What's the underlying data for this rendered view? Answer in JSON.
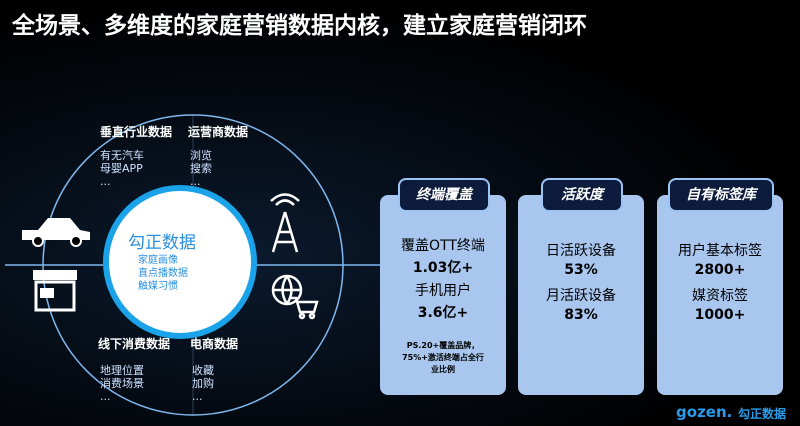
{
  "header": {
    "title": "全场景、多维度的家庭营销数据内核，建立家庭营销闭环"
  },
  "circle": {
    "center": {
      "title": "勾正数据",
      "items": [
        "家庭画像",
        "直点播数据",
        "触媒习惯"
      ]
    },
    "quadrants": [
      {
        "title": "垂直行业数据",
        "items": [
          "有无汽车",
          "母婴APP",
          "..."
        ]
      },
      {
        "title": "运营商数据",
        "items": [
          "浏览",
          "搜索",
          "..."
        ]
      },
      {
        "title": "线下消费数据",
        "items": [
          "地理位置",
          "消费场景",
          "..."
        ]
      },
      {
        "title": "电商数据",
        "items": [
          "收藏",
          "加购",
          "..."
        ]
      }
    ]
  },
  "cards": [
    {
      "tab": "终端覆盖",
      "lines": [
        "覆盖OTT终端",
        "1.03亿+",
        "手机用户",
        "3.6亿+"
      ],
      "note": [
        "PS.20+覆盖品牌，",
        "75%+激活终端占全行",
        "业比例"
      ]
    },
    {
      "tab": "活跃度",
      "lines": [
        "日活跃设备",
        "53%",
        "月活跃设备",
        "83%"
      ]
    },
    {
      "tab": "自有标签库",
      "lines": [
        "用户基本标签",
        "2800+",
        "媒资标签",
        "1000+"
      ]
    }
  ],
  "logo": {
    "mark": "gozen.",
    "text": "勾正数据"
  }
}
